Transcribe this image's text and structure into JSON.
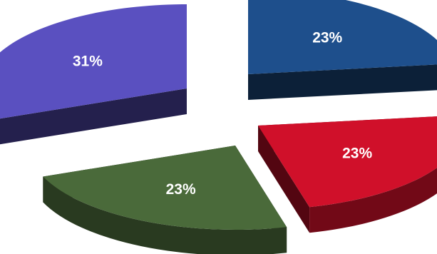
{
  "chart_data": {
    "type": "pie",
    "title": "",
    "categories": [
      "",
      "",
      "",
      ""
    ],
    "values": [
      23,
      23,
      23,
      31
    ],
    "labels": [
      "23%",
      "23%",
      "23%",
      "31%"
    ],
    "colors": [
      "#1e4f8c",
      "#d0102a",
      "#4a6a3a",
      "#5a50c0"
    ],
    "legend": "none",
    "style": "3d-exploded"
  }
}
